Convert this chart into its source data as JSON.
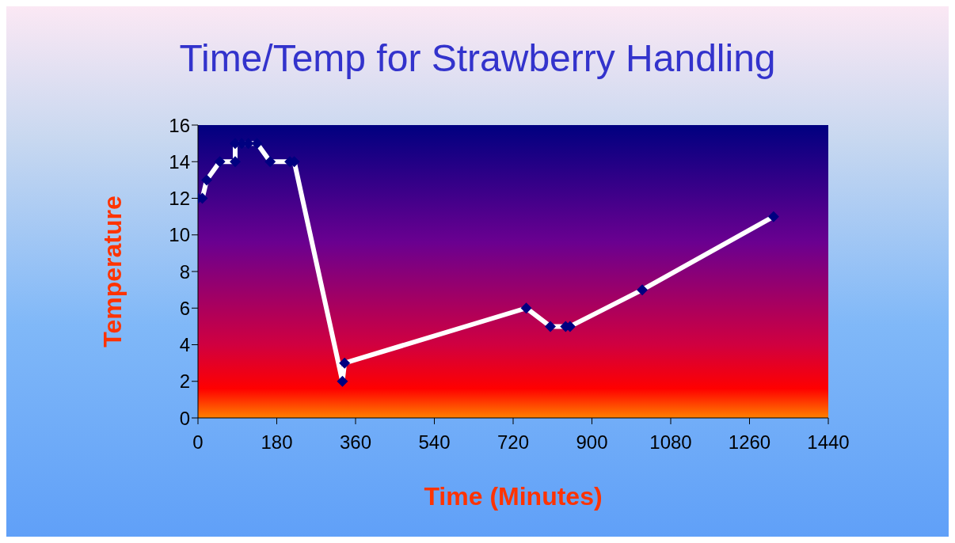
{
  "chart_data": {
    "type": "line",
    "title": "Time/Temp for Strawberry Handling",
    "xlabel": "Time (Minutes)",
    "ylabel": "Temperature",
    "x": [
      0,
      10,
      20,
      50,
      85,
      85,
      100,
      115,
      135,
      165,
      210,
      220,
      330,
      335,
      750,
      805,
      840,
      850,
      1015,
      1315
    ],
    "series": [
      {
        "color": "#ffffff",
        "values": [
          12,
          12,
          13,
          14,
          14,
          15,
          15,
          15,
          15,
          14,
          14,
          14,
          2,
          3,
          6,
          5,
          5,
          5,
          7,
          11
        ]
      }
    ],
    "xlim": [
      0,
      1440
    ],
    "xticks": [
      0,
      180,
      360,
      540,
      720,
      900,
      1080,
      1260,
      1440
    ],
    "ylim": [
      0,
      16
    ],
    "yticks": [
      0,
      2,
      4,
      6,
      8,
      10,
      12,
      14,
      16
    ],
    "grid": false,
    "legend": false,
    "marker": "diamond",
    "line_style": "solid"
  }
}
